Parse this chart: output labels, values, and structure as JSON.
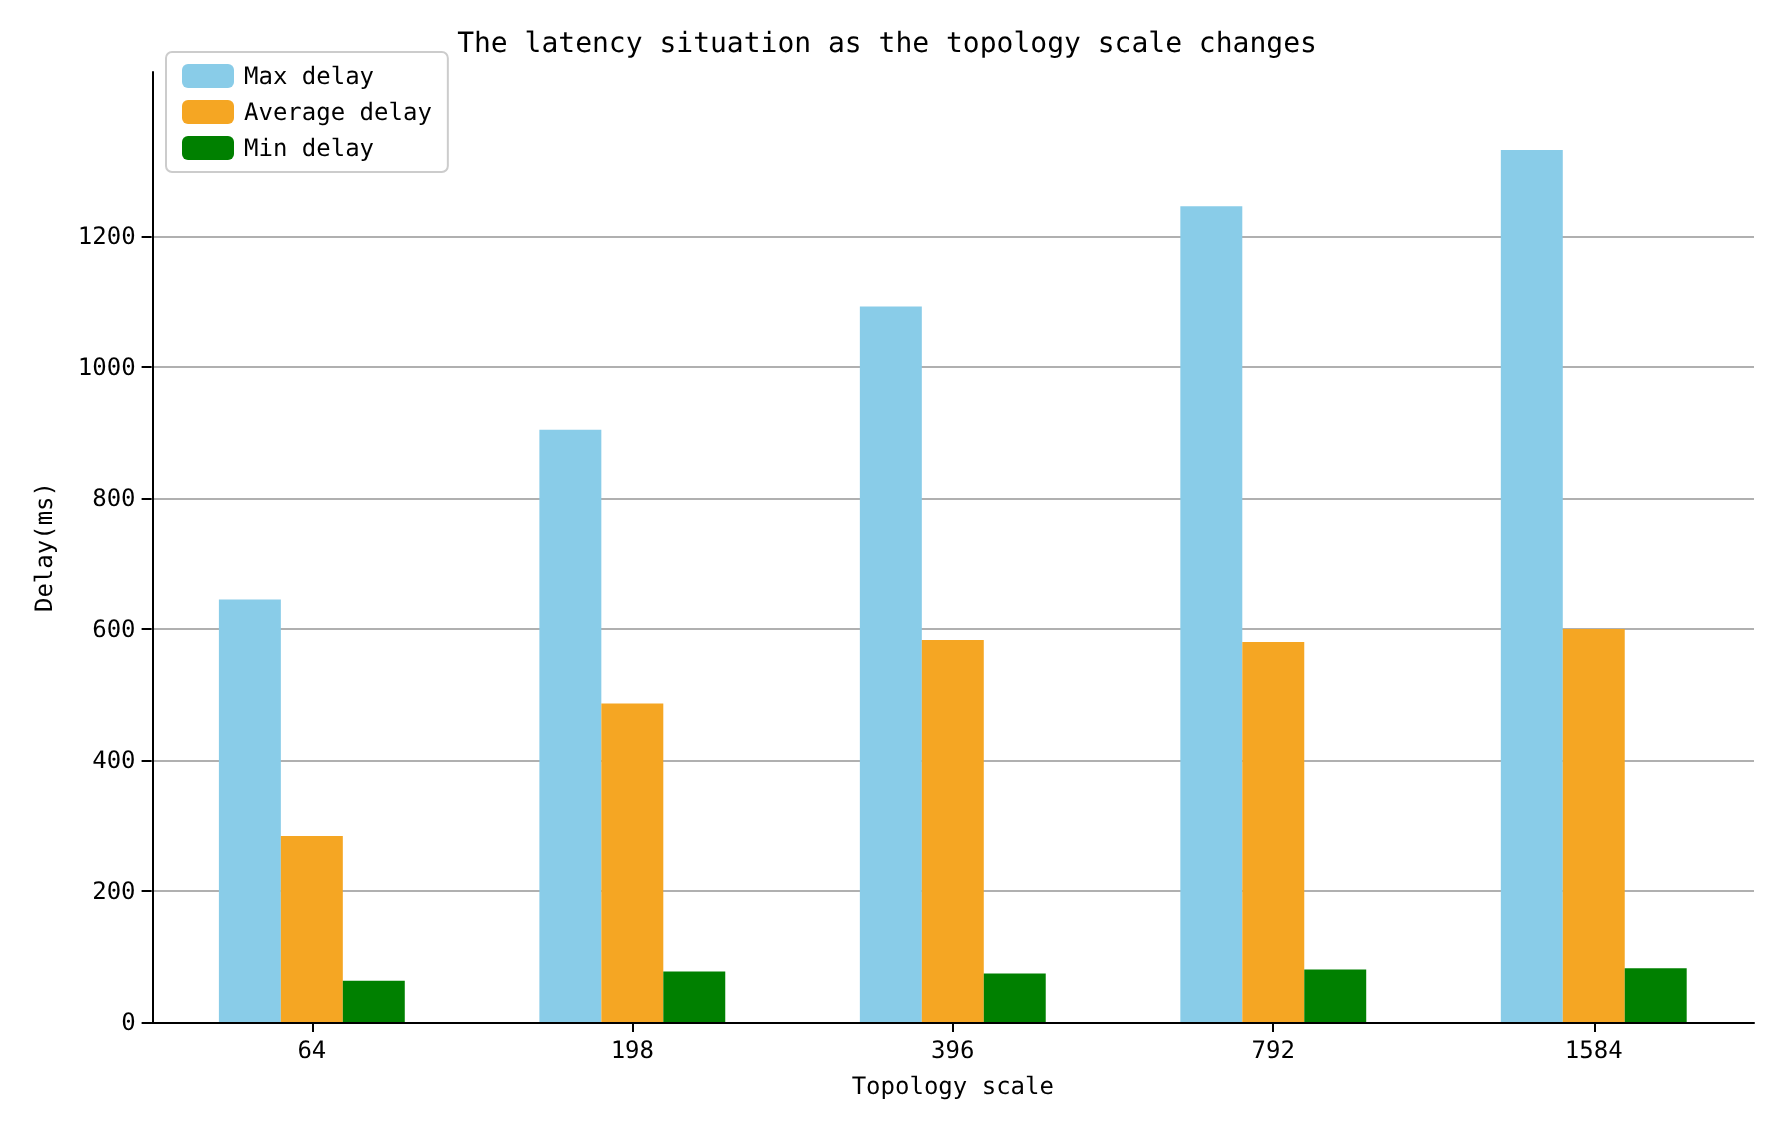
{
  "chart_data": {
    "type": "bar",
    "title": "The latency situation as the topology scale changes",
    "xlabel": "Topology scale",
    "ylabel": "Delay(ms)",
    "categories": [
      "64",
      "198",
      "396",
      "792",
      "1584"
    ],
    "series": [
      {
        "name": "Max delay",
        "color": "#89cce8",
        "values": [
          645,
          904,
          1092,
          1245,
          1331
        ]
      },
      {
        "name": "Average delay",
        "color": "#f5a623",
        "values": [
          284,
          486,
          583,
          580,
          600
        ]
      },
      {
        "name": "Min delay",
        "color": "#008000",
        "values": [
          63,
          77,
          74,
          80,
          82
        ]
      }
    ],
    "ylim": [
      0,
      1450
    ],
    "yticks": [
      0,
      200,
      400,
      600,
      800,
      1000,
      1200
    ],
    "grid": "y",
    "legend": "top left"
  }
}
